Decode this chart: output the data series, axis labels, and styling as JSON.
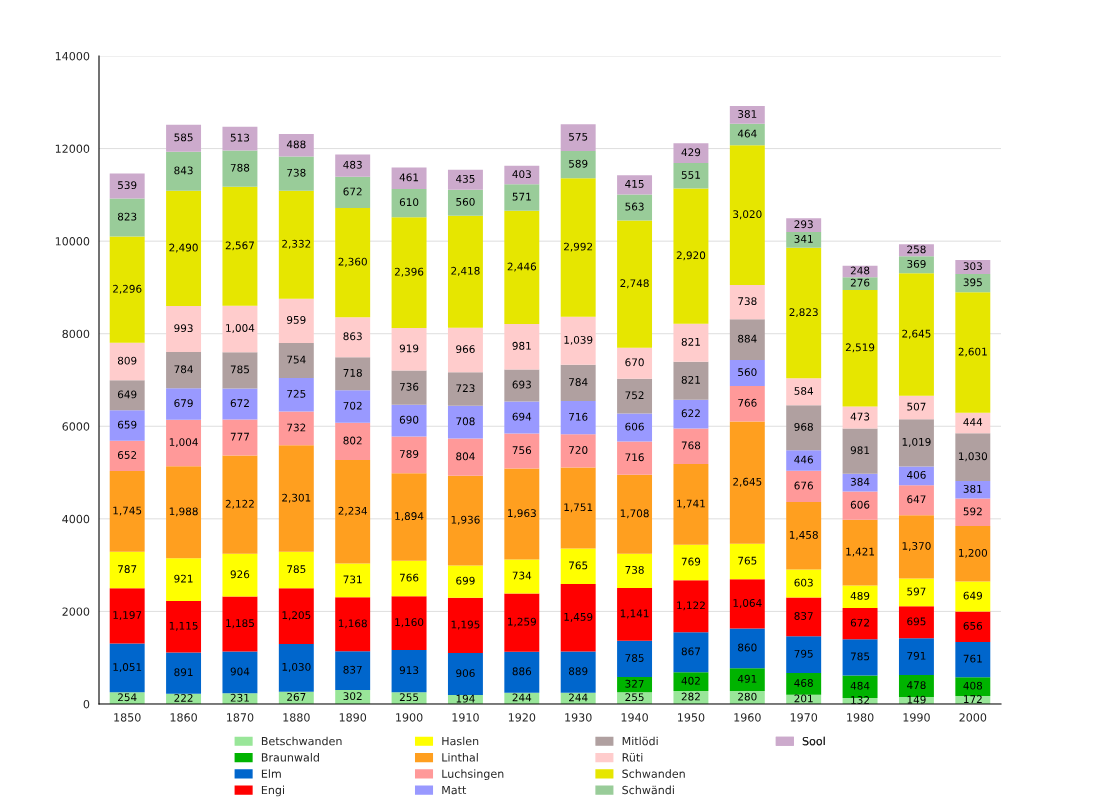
{
  "chart_data": {
    "type": "bar",
    "stacked": true,
    "grid": "y",
    "legend": "bottom",
    "categories": [
      "1850",
      "1860",
      "1870",
      "1880",
      "1890",
      "1900",
      "1910",
      "1920",
      "1930",
      "1940",
      "1950",
      "1960",
      "1970",
      "1980",
      "1990",
      "2000"
    ],
    "ylim": [
      0,
      14000
    ],
    "yticks": [
      0,
      2000,
      4000,
      6000,
      8000,
      10000,
      12000,
      14000
    ],
    "series": [
      {
        "name": "Betschwanden",
        "color": "#99e699",
        "values": [
          254,
          222,
          231,
          267,
          302,
          255,
          194,
          244,
          244,
          255,
          282,
          280,
          201,
          132,
          149,
          172
        ],
        "value_labels": [
          "254",
          "222",
          "231",
          "267",
          "302",
          "255",
          "194",
          "244",
          "244",
          "255",
          "282",
          "280",
          "201",
          "132",
          "149",
          "172"
        ]
      },
      {
        "name": "Braunwald",
        "color": "#00b300",
        "values": [
          null,
          null,
          null,
          null,
          null,
          null,
          null,
          null,
          null,
          327,
          402,
          491,
          468,
          484,
          478,
          408
        ],
        "value_labels": [
          null,
          null,
          null,
          null,
          null,
          null,
          null,
          null,
          null,
          "327",
          "402",
          "491",
          "468",
          "484",
          "478",
          "408"
        ]
      },
      {
        "name": "Elm",
        "color": "#0066cc",
        "values": [
          1051,
          891,
          904,
          1030,
          837,
          913,
          906,
          886,
          889,
          785,
          867,
          860,
          795,
          785,
          791,
          761
        ],
        "value_labels": [
          "1,051",
          "891",
          "904",
          "1,030",
          "837",
          "913",
          "906",
          "886",
          "889",
          "785",
          "867",
          "860",
          "795",
          "785",
          "791",
          "761"
        ]
      },
      {
        "name": "Engi",
        "color": "#ff0000",
        "values": [
          1197,
          1115,
          1185,
          1205,
          1168,
          1160,
          1195,
          1259,
          1459,
          1141,
          1122,
          1064,
          837,
          672,
          695,
          656
        ],
        "value_labels": [
          "1,197",
          "1,115",
          "1,185",
          "1,205",
          "1,168",
          "1,160",
          "1,195",
          "1,259",
          "1,459",
          "1,141",
          "1,122",
          "1,064",
          "837",
          "672",
          "695",
          "656"
        ]
      },
      {
        "name": "Haslen",
        "color": "#ffff00",
        "values": [
          787,
          921,
          926,
          785,
          731,
          766,
          699,
          734,
          765,
          738,
          769,
          765,
          603,
          489,
          597,
          649
        ],
        "value_labels": [
          "787",
          "921",
          "926",
          "785",
          "731",
          "766",
          "699",
          "734",
          "765",
          "738",
          "769",
          "765",
          "603",
          "489",
          "597",
          "649"
        ]
      },
      {
        "name": "Linthal",
        "color": "#ff9f1f",
        "values": [
          1745,
          1988,
          2122,
          2301,
          2234,
          1894,
          1936,
          1963,
          1751,
          1708,
          1741,
          2645,
          1458,
          1421,
          1370,
          1200
        ],
        "value_labels": [
          "1,745",
          "1,988",
          "2,122",
          "2,301",
          "2,234",
          "1,894",
          "1,936",
          "1,963",
          "1,751",
          "1,708",
          "1,741",
          "2,645",
          "1,458",
          "1,421",
          "1,370",
          "1,200"
        ]
      },
      {
        "name": "Luchsingen",
        "color": "#ff9999",
        "values": [
          652,
          1004,
          777,
          732,
          802,
          789,
          804,
          756,
          720,
          716,
          768,
          766,
          676,
          606,
          647,
          592
        ],
        "value_labels": [
          "652",
          "1,004",
          "777",
          "732",
          "802",
          "789",
          "804",
          "756",
          "720",
          "716",
          "768",
          "766",
          "676",
          "606",
          "647",
          "592"
        ]
      },
      {
        "name": "Matt",
        "color": "#9999ff",
        "values": [
          659,
          679,
          672,
          725,
          702,
          690,
          708,
          694,
          716,
          606,
          622,
          560,
          446,
          384,
          406,
          381
        ],
        "value_labels": [
          "659",
          "679",
          "672",
          "725",
          "702",
          "690",
          "708",
          "694",
          "716",
          "606",
          "622",
          "560",
          "446",
          "384",
          "406",
          "381"
        ]
      },
      {
        "name": "Mitlödi",
        "color": "#b0a0a0",
        "values": [
          649,
          784,
          785,
          754,
          718,
          736,
          723,
          693,
          784,
          752,
          821,
          884,
          968,
          981,
          1019,
          1030
        ],
        "value_labels": [
          "649",
          "784",
          "785",
          "754",
          "718",
          "736",
          "723",
          "693",
          "784",
          "752",
          "821",
          "884",
          "968",
          "981",
          "1,019",
          "1,030"
        ]
      },
      {
        "name": "Rüti",
        "color": "#ffcccc",
        "values": [
          809,
          993,
          1004,
          959,
          863,
          919,
          966,
          981,
          1039,
          670,
          821,
          738,
          584,
          473,
          507,
          444
        ],
        "value_labels": [
          "809",
          "993",
          "1,004",
          "959",
          "863",
          "919",
          "966",
          "981",
          "1,039",
          "670",
          "821",
          "738",
          "584",
          "473",
          "507",
          "444"
        ]
      },
      {
        "name": "Schwanden",
        "color": "#e6e600",
        "values": [
          2296,
          2490,
          2567,
          2332,
          2360,
          2396,
          2418,
          2446,
          2992,
          2748,
          2920,
          3020,
          2823,
          2519,
          2645,
          2601
        ],
        "value_labels": [
          "2,296",
          "2,490",
          "2,567",
          "2,332",
          "2,360",
          "2,396",
          "2,418",
          "2,446",
          "2,992",
          "2,748",
          "2,920",
          "3,020",
          "2,823",
          "2,519",
          "2,645",
          "2,601"
        ]
      },
      {
        "name": "Schwändi",
        "color": "#99cc99",
        "values": [
          823,
          843,
          788,
          738,
          672,
          610,
          560,
          571,
          589,
          563,
          551,
          464,
          341,
          276,
          369,
          395
        ],
        "value_labels": [
          "823",
          "843",
          "788",
          "738",
          "672",
          "610",
          "560",
          "571",
          "589",
          "563",
          "551",
          "464",
          "341",
          "276",
          "369",
          "395"
        ]
      },
      {
        "name": "Sool",
        "color": "#ccaacc",
        "values": [
          539,
          585,
          513,
          488,
          483,
          461,
          435,
          403,
          575,
          415,
          429,
          381,
          293,
          248,
          258,
          303
        ],
        "value_labels": [
          "539",
          "585",
          "513",
          "488",
          "483",
          "461",
          "435",
          "403",
          "575",
          "415",
          "429",
          "381",
          "293",
          "248",
          "258",
          "303"
        ]
      }
    ]
  }
}
